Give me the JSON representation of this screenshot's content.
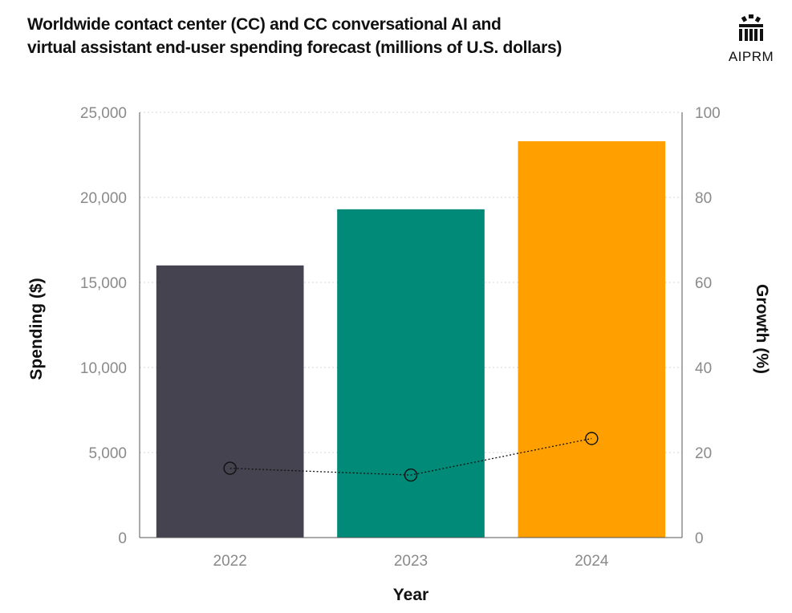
{
  "title_lines": [
    "Worldwide contact center (CC) and CC conversational AI and",
    "virtual assistant end-user spending forecast (millions of U.S. dollars)"
  ],
  "brand": {
    "name": "AIPRM",
    "icon": "aiprm-logo-icon"
  },
  "chart_data": {
    "type": "bar",
    "categories": [
      "2022",
      "2023",
      "2024"
    ],
    "series": [
      {
        "values": [
          16000,
          19300,
          23300
        ],
        "colors": [
          "#44434f",
          "#008a77",
          "#ffa000"
        ],
        "axis": "left"
      },
      {
        "type": "line",
        "values": [
          16.3,
          14.7,
          23.3
        ],
        "axis": "right",
        "style": "dotted",
        "marker": "open-circle"
      }
    ],
    "xlabel": "Year",
    "ylabel": "Spending ($)",
    "y2label": "Growth (%)",
    "ylim": [
      0,
      25000
    ],
    "y2lim": [
      0,
      100
    ],
    "yticks": [
      "0",
      "5,000",
      "10,000",
      "15,000",
      "20,000",
      "25,000"
    ],
    "y2ticks": [
      "0",
      "20",
      "40",
      "60",
      "80",
      "100"
    ],
    "grid": "horizontal-dotted"
  }
}
